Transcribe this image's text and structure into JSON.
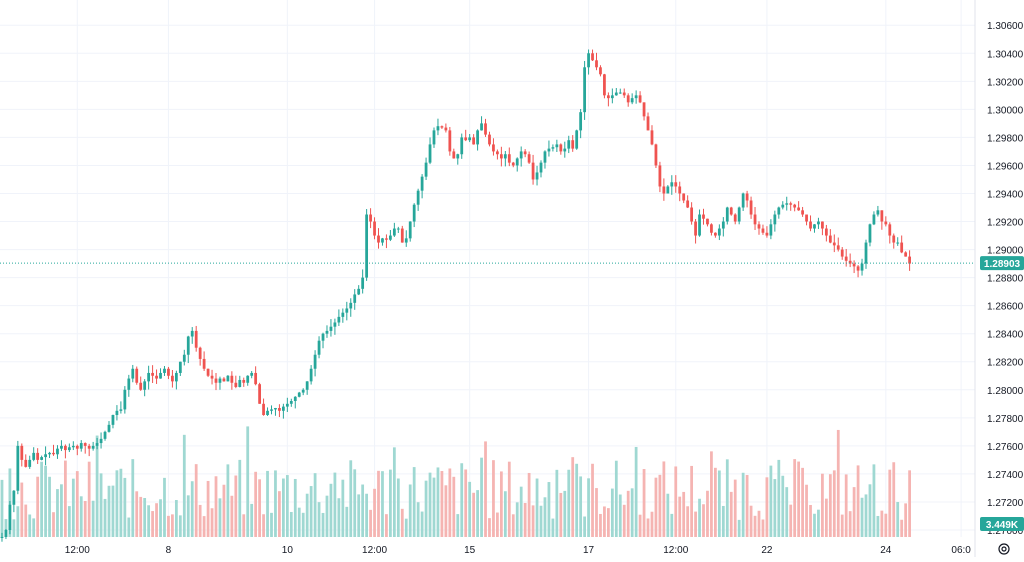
{
  "colors": {
    "up": "#26a69a",
    "down": "#ef5350",
    "volume_up": "#9fd8d2",
    "volume_down": "#f5b4b2",
    "grid": "#f0f3fa",
    "axis_text": "#131722",
    "price_line": "#26a69a"
  },
  "icons": {
    "settings": "gear-icon"
  },
  "chart_data": {
    "type": "candlestick",
    "title": "",
    "xlabel": "",
    "ylabel": "",
    "ylim": [
      1.2695,
      1.3078
    ],
    "y_ticks": [
      "1.30600",
      "1.30400",
      "1.30200",
      "1.30000",
      "1.29800",
      "1.29600",
      "1.29400",
      "1.29200",
      "1.29000",
      "1.28800",
      "1.28600",
      "1.28400",
      "1.28200",
      "1.28000",
      "1.27800",
      "1.27600",
      "1.27400",
      "1.27200",
      "1.27000"
    ],
    "x_ticks": [
      "12:00",
      "8",
      "10",
      "12:00",
      "15",
      "17",
      "12:00",
      "22",
      "24",
      "06:0"
    ],
    "x_tick_index": [
      19,
      42,
      72,
      94,
      118,
      148,
      170,
      193,
      223,
      242
    ],
    "bar_count": 246,
    "price_series": [
      [
        0,
        1.2695
      ],
      [
        1,
        1.27
      ],
      [
        2,
        1.2718
      ],
      [
        3,
        1.2728
      ],
      [
        4,
        1.276
      ],
      [
        5,
        1.275
      ],
      [
        6,
        1.2745
      ],
      [
        7,
        1.275
      ],
      [
        8,
        1.2755
      ],
      [
        9,
        1.275
      ],
      [
        10,
        1.2752
      ],
      [
        11,
        1.2754
      ],
      [
        12,
        1.2755
      ],
      [
        13,
        1.2754
      ],
      [
        14,
        1.2758
      ],
      [
        15,
        1.276
      ],
      [
        16,
        1.2757
      ],
      [
        17,
        1.2759
      ],
      [
        18,
        1.276
      ],
      [
        19,
        1.2758
      ],
      [
        20,
        1.2762
      ],
      [
        21,
        1.276
      ],
      [
        22,
        1.2758
      ],
      [
        23,
        1.276
      ],
      [
        24,
        1.2762
      ],
      [
        25,
        1.2765
      ],
      [
        26,
        1.277
      ],
      [
        27,
        1.2775
      ],
      [
        28,
        1.2782
      ],
      [
        29,
        1.2785
      ],
      [
        30,
        1.2786
      ],
      [
        31,
        1.28
      ],
      [
        32,
        1.2808
      ],
      [
        33,
        1.2815
      ],
      [
        34,
        1.2805
      ],
      [
        35,
        1.28
      ],
      [
        36,
        1.2806
      ],
      [
        37,
        1.2812
      ],
      [
        38,
        1.281
      ],
      [
        39,
        1.2808
      ],
      [
        40,
        1.2812
      ],
      [
        41,
        1.2815
      ],
      [
        42,
        1.281
      ],
      [
        43,
        1.2806
      ],
      [
        44,
        1.2812
      ],
      [
        45,
        1.282
      ],
      [
        46,
        1.2825
      ],
      [
        47,
        1.2838
      ],
      [
        48,
        1.2842
      ],
      [
        49,
        1.283
      ],
      [
        50,
        1.2822
      ],
      [
        51,
        1.2815
      ],
      [
        52,
        1.281
      ],
      [
        53,
        1.2808
      ],
      [
        54,
        1.2805
      ],
      [
        55,
        1.2808
      ],
      [
        56,
        1.2806
      ],
      [
        57,
        1.281
      ],
      [
        58,
        1.2805
      ],
      [
        59,
        1.2802
      ],
      [
        60,
        1.2807
      ],
      [
        61,
        1.2805
      ],
      [
        62,
        1.281
      ],
      [
        63,
        1.2812
      ],
      [
        64,
        1.2804
      ],
      [
        65,
        1.279
      ],
      [
        66,
        1.2782
      ],
      [
        67,
        1.2785
      ],
      [
        68,
        1.2786
      ],
      [
        69,
        1.2787
      ],
      [
        70,
        1.2785
      ],
      [
        71,
        1.2788
      ],
      [
        72,
        1.279
      ],
      [
        73,
        1.2792
      ],
      [
        74,
        1.2795
      ],
      [
        75,
        1.2798
      ],
      [
        76,
        1.28
      ],
      [
        77,
        1.2806
      ],
      [
        78,
        1.2815
      ],
      [
        79,
        1.2825
      ],
      [
        80,
        1.2835
      ],
      [
        81,
        1.284
      ],
      [
        82,
        1.2842
      ],
      [
        83,
        1.2845
      ],
      [
        84,
        1.2848
      ],
      [
        85,
        1.2852
      ],
      [
        86,
        1.2855
      ],
      [
        87,
        1.2858
      ],
      [
        88,
        1.2862
      ],
      [
        89,
        1.2868
      ],
      [
        90,
        1.2872
      ],
      [
        91,
        1.288
      ],
      [
        92,
        1.2925
      ],
      [
        93,
        1.292
      ],
      [
        94,
        1.291
      ],
      [
        95,
        1.2905
      ],
      [
        96,
        1.2908
      ],
      [
        97,
        1.2907
      ],
      [
        98,
        1.291
      ],
      [
        99,
        1.2915
      ],
      [
        100,
        1.2915
      ],
      [
        101,
        1.2905
      ],
      [
        102,
        1.2908
      ],
      [
        103,
        1.292
      ],
      [
        104,
        1.2932
      ],
      [
        105,
        1.2942
      ],
      [
        106,
        1.2952
      ],
      [
        107,
        1.2962
      ],
      [
        108,
        1.2975
      ],
      [
        109,
        1.2985
      ],
      [
        110,
        1.2988
      ],
      [
        111,
        1.2987
      ],
      [
        112,
        1.2985
      ],
      [
        113,
        1.297
      ],
      [
        114,
        1.2965
      ],
      [
        115,
        1.2968
      ],
      [
        116,
        1.298
      ],
      [
        117,
        1.2978
      ],
      [
        118,
        1.298
      ],
      [
        119,
        1.2975
      ],
      [
        120,
        1.2985
      ],
      [
        121,
        1.299
      ],
      [
        122,
        1.2982
      ],
      [
        123,
        1.2975
      ],
      [
        124,
        1.297
      ],
      [
        125,
        1.2968
      ],
      [
        126,
        1.2965
      ],
      [
        127,
        1.2968
      ],
      [
        128,
        1.2962
      ],
      [
        129,
        1.296
      ],
      [
        130,
        1.2965
      ],
      [
        131,
        1.297
      ],
      [
        132,
        1.2968
      ],
      [
        133,
        1.2962
      ],
      [
        134,
        1.295
      ],
      [
        135,
        1.2955
      ],
      [
        136,
        1.2962
      ],
      [
        137,
        1.297
      ],
      [
        138,
        1.2972
      ],
      [
        139,
        1.2973
      ],
      [
        140,
        1.2975
      ],
      [
        141,
        1.297
      ],
      [
        142,
        1.2972
      ],
      [
        143,
        1.2978
      ],
      [
        144,
        1.2972
      ],
      [
        145,
        1.2985
      ],
      [
        146,
        1.2998
      ],
      [
        147,
        1.303
      ],
      [
        148,
        1.304
      ],
      [
        149,
        1.3035
      ],
      [
        150,
        1.303
      ],
      [
        151,
        1.3025
      ],
      [
        152,
        1.301
      ],
      [
        153,
        1.3008
      ],
      [
        154,
        1.301
      ],
      [
        155,
        1.3012
      ],
      [
        156,
        1.3012
      ],
      [
        157,
        1.301
      ],
      [
        158,
        1.3005
      ],
      [
        159,
        1.3008
      ],
      [
        160,
        1.301
      ],
      [
        161,
        1.3005
      ],
      [
        162,
        1.2995
      ],
      [
        163,
        1.2985
      ],
      [
        164,
        1.2975
      ],
      [
        165,
        1.296
      ],
      [
        166,
        1.2945
      ],
      [
        167,
        1.294
      ],
      [
        168,
        1.2945
      ],
      [
        169,
        1.2948
      ],
      [
        170,
        1.2945
      ],
      [
        171,
        1.294
      ],
      [
        172,
        1.2935
      ],
      [
        173,
        1.293
      ],
      [
        174,
        1.292
      ],
      [
        175,
        1.291
      ],
      [
        176,
        1.2925
      ],
      [
        177,
        1.2922
      ],
      [
        178,
        1.2918
      ],
      [
        179,
        1.2912
      ],
      [
        180,
        1.291
      ],
      [
        181,
        1.2915
      ],
      [
        182,
        1.292
      ],
      [
        183,
        1.293
      ],
      [
        184,
        1.2925
      ],
      [
        185,
        1.292
      ],
      [
        186,
        1.293
      ],
      [
        187,
        1.294
      ],
      [
        188,
        1.2935
      ],
      [
        189,
        1.2925
      ],
      [
        190,
        1.2918
      ],
      [
        191,
        1.2915
      ],
      [
        192,
        1.2912
      ],
      [
        193,
        1.291
      ],
      [
        194,
        1.2918
      ],
      [
        195,
        1.2925
      ],
      [
        196,
        1.293
      ],
      [
        197,
        1.2932
      ],
      [
        198,
        1.2933
      ],
      [
        199,
        1.2932
      ],
      [
        200,
        1.293
      ],
      [
        201,
        1.2928
      ],
      [
        202,
        1.2925
      ],
      [
        203,
        1.292
      ],
      [
        204,
        1.2915
      ],
      [
        205,
        1.2918
      ],
      [
        206,
        1.292
      ],
      [
        207,
        1.2915
      ],
      [
        208,
        1.291
      ],
      [
        209,
        1.2905
      ],
      [
        210,
        1.2903
      ],
      [
        211,
        1.29
      ],
      [
        212,
        1.2895
      ],
      [
        213,
        1.2892
      ],
      [
        214,
        1.289
      ],
      [
        215,
        1.2888
      ],
      [
        216,
        1.2885
      ],
      [
        217,
        1.289
      ],
      [
        218,
        1.2905
      ],
      [
        219,
        1.2918
      ],
      [
        220,
        1.2925
      ],
      [
        221,
        1.2928
      ],
      [
        222,
        1.292
      ],
      [
        223,
        1.2918
      ],
      [
        224,
        1.291
      ],
      [
        225,
        1.2905
      ],
      [
        226,
        1.2905
      ],
      [
        227,
        1.2898
      ],
      [
        228,
        1.2895
      ],
      [
        229,
        1.289
      ]
    ],
    "last_price": 1.28903,
    "last_price_label": "1.28903",
    "volume_label": "3.449K",
    "volume_max": 4.0,
    "grid": true
  }
}
